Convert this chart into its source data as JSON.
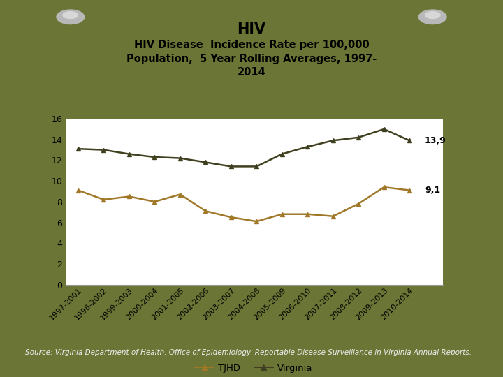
{
  "title_main": "HIV",
  "title_sub": "HIV Disease  Incidence Rate per 100,000\nPopulation,  5 Year Rolling Averages, 1997-\n2014",
  "categories": [
    "1997-2001",
    "1998-2002",
    "1999-2003",
    "2000-2004",
    "2001-2005",
    "2002-2006",
    "2003-2007",
    "2004-2008",
    "2005-2009",
    "2006-2010",
    "2007-2011",
    "2008-2012",
    "2009-2013",
    "2010-2014"
  ],
  "tjhd": [
    9.1,
    8.2,
    8.5,
    8.0,
    8.7,
    7.1,
    6.5,
    6.1,
    6.8,
    6.8,
    6.6,
    7.8,
    9.4,
    9.1
  ],
  "virginia": [
    13.1,
    13.0,
    12.6,
    12.3,
    12.2,
    11.8,
    11.4,
    11.4,
    12.6,
    13.3,
    13.9,
    14.2,
    15.0,
    13.9
  ],
  "tjhd_color": "#A07828",
  "virginia_color": "#404020",
  "ylim": [
    0,
    16
  ],
  "yticks": [
    0,
    2,
    4,
    6,
    8,
    10,
    12,
    14,
    16
  ],
  "bg_outer": "#6B7535",
  "bg_paper": "#FFFFFF",
  "source_text": "Source: Virginia Department of Health. Office of Epidemiology. Reportable Disease Surveillance in Virginia Annual Reports.",
  "annotation_virginia": "13,9",
  "annotation_tjhd": "9,1",
  "legend_tjhd": "TJHD",
  "legend_virginia": "Virginia"
}
